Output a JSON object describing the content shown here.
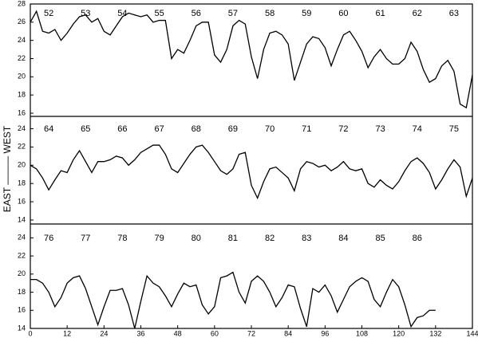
{
  "chart_data": [
    {
      "type": "line",
      "color": "#000000",
      "year_labels": [
        "52",
        "53",
        "54",
        "55",
        "56",
        "57",
        "58",
        "59",
        "60",
        "61",
        "62",
        "63"
      ],
      "x": [
        0,
        2,
        4,
        6,
        8,
        10,
        12,
        14,
        16,
        18,
        20,
        22,
        24,
        26,
        28,
        30,
        32,
        34,
        36,
        38,
        40,
        42,
        44,
        46,
        48,
        50,
        52,
        54,
        56,
        58,
        60,
        62,
        64,
        66,
        68,
        70,
        72,
        74,
        76,
        78,
        80,
        82,
        84,
        86,
        88,
        90,
        92,
        94,
        96,
        98,
        100,
        102,
        104,
        106,
        108,
        110,
        112,
        114,
        116,
        118,
        120,
        122,
        124,
        126,
        128,
        130,
        132,
        134,
        136,
        138,
        140,
        142,
        144
      ],
      "values": [
        26.0,
        27.2,
        25.0,
        24.8,
        25.2,
        24.0,
        24.8,
        25.8,
        26.6,
        26.8,
        26.0,
        26.4,
        25.0,
        24.6,
        25.6,
        26.6,
        27.0,
        26.8,
        26.6,
        26.8,
        26.0,
        26.2,
        26.2,
        22.0,
        23.0,
        22.6,
        24.0,
        25.6,
        26.0,
        26.0,
        22.4,
        21.6,
        23.0,
        25.6,
        26.2,
        25.8,
        22.2,
        19.8,
        23.0,
        24.8,
        25.0,
        24.6,
        23.6,
        19.6,
        21.6,
        23.6,
        24.4,
        24.2,
        23.2,
        21.2,
        23.0,
        24.6,
        25.0,
        24.0,
        22.8,
        21.0,
        22.2,
        23.0,
        22.0,
        21.4,
        21.4,
        22.0,
        23.8,
        22.8,
        20.8,
        19.4,
        19.8,
        21.2,
        21.8,
        20.6,
        17.0,
        16.6,
        20.2
      ],
      "xlim": [
        0,
        144
      ],
      "ylim": [
        16,
        28
      ],
      "yticks": [
        16,
        18,
        20,
        22,
        24,
        26,
        28
      ]
    },
    {
      "type": "line",
      "color": "#000000",
      "ylabel": "EAST ——— WEST",
      "year_labels": [
        "64",
        "65",
        "66",
        "67",
        "68",
        "69",
        "70",
        "71",
        "72",
        "73",
        "74",
        "75"
      ],
      "x": [
        0,
        2,
        4,
        6,
        8,
        10,
        12,
        14,
        16,
        18,
        20,
        22,
        24,
        26,
        28,
        30,
        32,
        34,
        36,
        38,
        40,
        42,
        44,
        46,
        48,
        50,
        52,
        54,
        56,
        58,
        60,
        62,
        64,
        66,
        68,
        70,
        72,
        74,
        76,
        78,
        80,
        82,
        84,
        86,
        88,
        90,
        92,
        94,
        96,
        98,
        100,
        102,
        104,
        106,
        108,
        110,
        112,
        114,
        116,
        118,
        120,
        122,
        124,
        126,
        128,
        130,
        132,
        134,
        136,
        138,
        140,
        142,
        144
      ],
      "values": [
        20.0,
        19.6,
        18.6,
        17.3,
        18.4,
        19.4,
        19.2,
        20.6,
        21.6,
        20.4,
        19.2,
        20.4,
        20.4,
        20.6,
        21.0,
        20.8,
        20.0,
        20.6,
        21.4,
        21.8,
        22.2,
        22.2,
        21.2,
        19.6,
        19.2,
        20.2,
        21.2,
        22.0,
        22.2,
        21.4,
        20.4,
        19.4,
        19.0,
        19.6,
        21.2,
        21.4,
        17.8,
        16.4,
        18.2,
        19.6,
        19.8,
        19.2,
        18.6,
        17.2,
        19.6,
        20.4,
        20.2,
        19.8,
        20.0,
        19.4,
        19.8,
        20.4,
        19.6,
        19.4,
        19.6,
        18.0,
        17.6,
        18.4,
        17.8,
        17.4,
        18.2,
        19.4,
        20.4,
        20.8,
        20.2,
        19.2,
        17.4,
        18.4,
        19.6,
        20.6,
        19.8,
        16.6,
        18.6
      ],
      "xlim": [
        0,
        144
      ],
      "ylim": [
        14,
        25
      ],
      "yticks": [
        14,
        16,
        18,
        20,
        22,
        24
      ]
    },
    {
      "type": "line",
      "color": "#000000",
      "year_labels": [
        "76",
        "77",
        "78",
        "79",
        "80",
        "81",
        "82",
        "83",
        "84",
        "85",
        "86"
      ],
      "x": [
        0,
        2,
        4,
        6,
        8,
        10,
        12,
        14,
        16,
        18,
        20,
        22,
        24,
        26,
        28,
        30,
        32,
        34,
        36,
        38,
        40,
        42,
        44,
        46,
        48,
        50,
        52,
        54,
        56,
        58,
        60,
        62,
        64,
        66,
        68,
        70,
        72,
        74,
        76,
        78,
        80,
        82,
        84,
        86,
        88,
        90,
        92,
        94,
        96,
        98,
        100,
        102,
        104,
        106,
        108,
        110,
        112,
        114,
        116,
        118,
        120,
        122,
        124,
        126,
        128,
        130,
        132
      ],
      "values": [
        19.4,
        19.4,
        19.0,
        18.0,
        16.4,
        17.4,
        19.0,
        19.6,
        19.8,
        18.4,
        16.4,
        14.4,
        16.4,
        18.2,
        18.2,
        18.4,
        16.6,
        14.0,
        17.0,
        19.8,
        19.0,
        18.6,
        17.6,
        16.4,
        17.8,
        19.0,
        18.6,
        18.8,
        16.6,
        15.6,
        16.4,
        19.6,
        19.8,
        20.2,
        18.0,
        16.8,
        19.2,
        19.8,
        19.2,
        18.0,
        16.4,
        17.4,
        18.8,
        18.6,
        16.2,
        14.2,
        18.4,
        18.0,
        18.8,
        17.6,
        15.8,
        17.2,
        18.6,
        19.2,
        19.6,
        19.2,
        17.2,
        16.4,
        18.0,
        19.4,
        18.6,
        16.6,
        14.2,
        15.2,
        15.4,
        16.0,
        16.0
      ],
      "xlim": [
        0,
        144
      ],
      "ylim": [
        14,
        25
      ],
      "yticks": [
        14,
        16,
        18,
        20,
        22,
        24
      ],
      "xticks": [
        0,
        12,
        24,
        36,
        48,
        60,
        72,
        84,
        96,
        108,
        120,
        132,
        144
      ]
    }
  ]
}
